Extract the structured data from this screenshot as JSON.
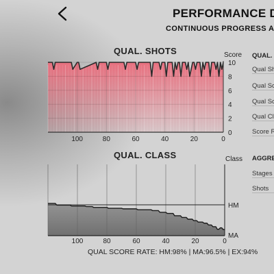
{
  "header": {
    "title": "PERFORMANCE D",
    "subtitle": "CONTINUOUS PROGRESS AC",
    "back_icon": "chevron-left-icon"
  },
  "shots_chart": {
    "title": "QUAL. SHOTS",
    "y_caption": "Score"
  },
  "class_chart": {
    "title": "QUAL. CLASS",
    "y_caption": "Class"
  },
  "right_panel": {
    "section1_title": "QUAL.",
    "section1_rows": [
      "Qual Sh",
      "Qual Sc",
      "Qual Sc",
      "Qual Cl",
      "Score R"
    ],
    "section2_title": "AGGRE",
    "section2_rows": [
      "Stages",
      "Shots"
    ]
  },
  "footer": {
    "rate_text": "QUAL SCORE RATE: HM:98% | MA:96.5% | EX:94%"
  },
  "colors": {
    "shot_fill": "#e8707f",
    "shot_line": "#2a2a2a",
    "class_fill": "#5f5f5f"
  },
  "chart_data": [
    {
      "type": "area",
      "title": "QUAL. SHOTS",
      "ylabel": "Score",
      "xlim": [
        120,
        0
      ],
      "ylim": [
        0,
        10
      ],
      "x_ticks": [
        100,
        80,
        60,
        40,
        20,
        0
      ],
      "y_ticks": [
        0,
        2,
        4,
        6,
        8,
        10
      ],
      "x": [
        120,
        117,
        116,
        115,
        104,
        103,
        100,
        99,
        98,
        87,
        86,
        85,
        80,
        79,
        78,
        68,
        67,
        66,
        60,
        59,
        58,
        50,
        49,
        48,
        47,
        44,
        43,
        42,
        40,
        39,
        38,
        37,
        35,
        34,
        33,
        32,
        31,
        30,
        29,
        28,
        26,
        25,
        24,
        23,
        21,
        20,
        19,
        18,
        16,
        15,
        14,
        13,
        12,
        10,
        9,
        8,
        6,
        5,
        4,
        3,
        2,
        1,
        0
      ],
      "values": [
        10,
        10,
        9,
        10,
        10,
        9,
        10,
        10,
        9,
        10,
        9,
        10,
        10,
        9,
        10,
        10,
        9,
        10,
        10,
        9,
        10,
        10,
        8,
        10,
        10,
        10,
        9,
        10,
        10,
        8,
        10,
        10,
        10,
        8,
        10,
        9,
        10,
        10,
        8,
        10,
        10,
        9,
        10,
        8,
        10,
        10,
        9,
        10,
        10,
        8,
        10,
        9,
        10,
        10,
        8,
        10,
        10,
        9,
        10,
        8,
        10,
        9,
        10
      ],
      "grid": true
    },
    {
      "type": "line",
      "title": "QUAL. CLASS",
      "ylabel": "Class",
      "xlim": [
        120,
        0
      ],
      "x_ticks": [
        100,
        80,
        60,
        40,
        20,
        0
      ],
      "y_categories": [
        "MA",
        "HM"
      ],
      "x": [
        120,
        115,
        114,
        105,
        104,
        95,
        94,
        90,
        89,
        80,
        79,
        70,
        69,
        60,
        59,
        50,
        49,
        45,
        44,
        40,
        39,
        35,
        34,
        30,
        29,
        26,
        25,
        22,
        21,
        19,
        18,
        15,
        14,
        12,
        11,
        9,
        8,
        6,
        5,
        4,
        3,
        2,
        1,
        0
      ],
      "values": [
        1.05,
        1.05,
        0.99,
        0.99,
        0.96,
        0.96,
        0.94,
        0.94,
        0.91,
        0.91,
        0.88,
        0.88,
        0.86,
        0.86,
        0.83,
        0.83,
        0.8,
        0.8,
        0.74,
        0.74,
        0.7,
        0.7,
        0.62,
        0.62,
        0.56,
        0.56,
        0.5,
        0.5,
        0.45,
        0.45,
        0.4,
        0.4,
        0.36,
        0.36,
        0.3,
        0.3,
        0.24,
        0.24,
        0.15,
        0.15,
        0.2,
        0.2,
        0.14,
        0.14
      ],
      "grid": true
    }
  ]
}
